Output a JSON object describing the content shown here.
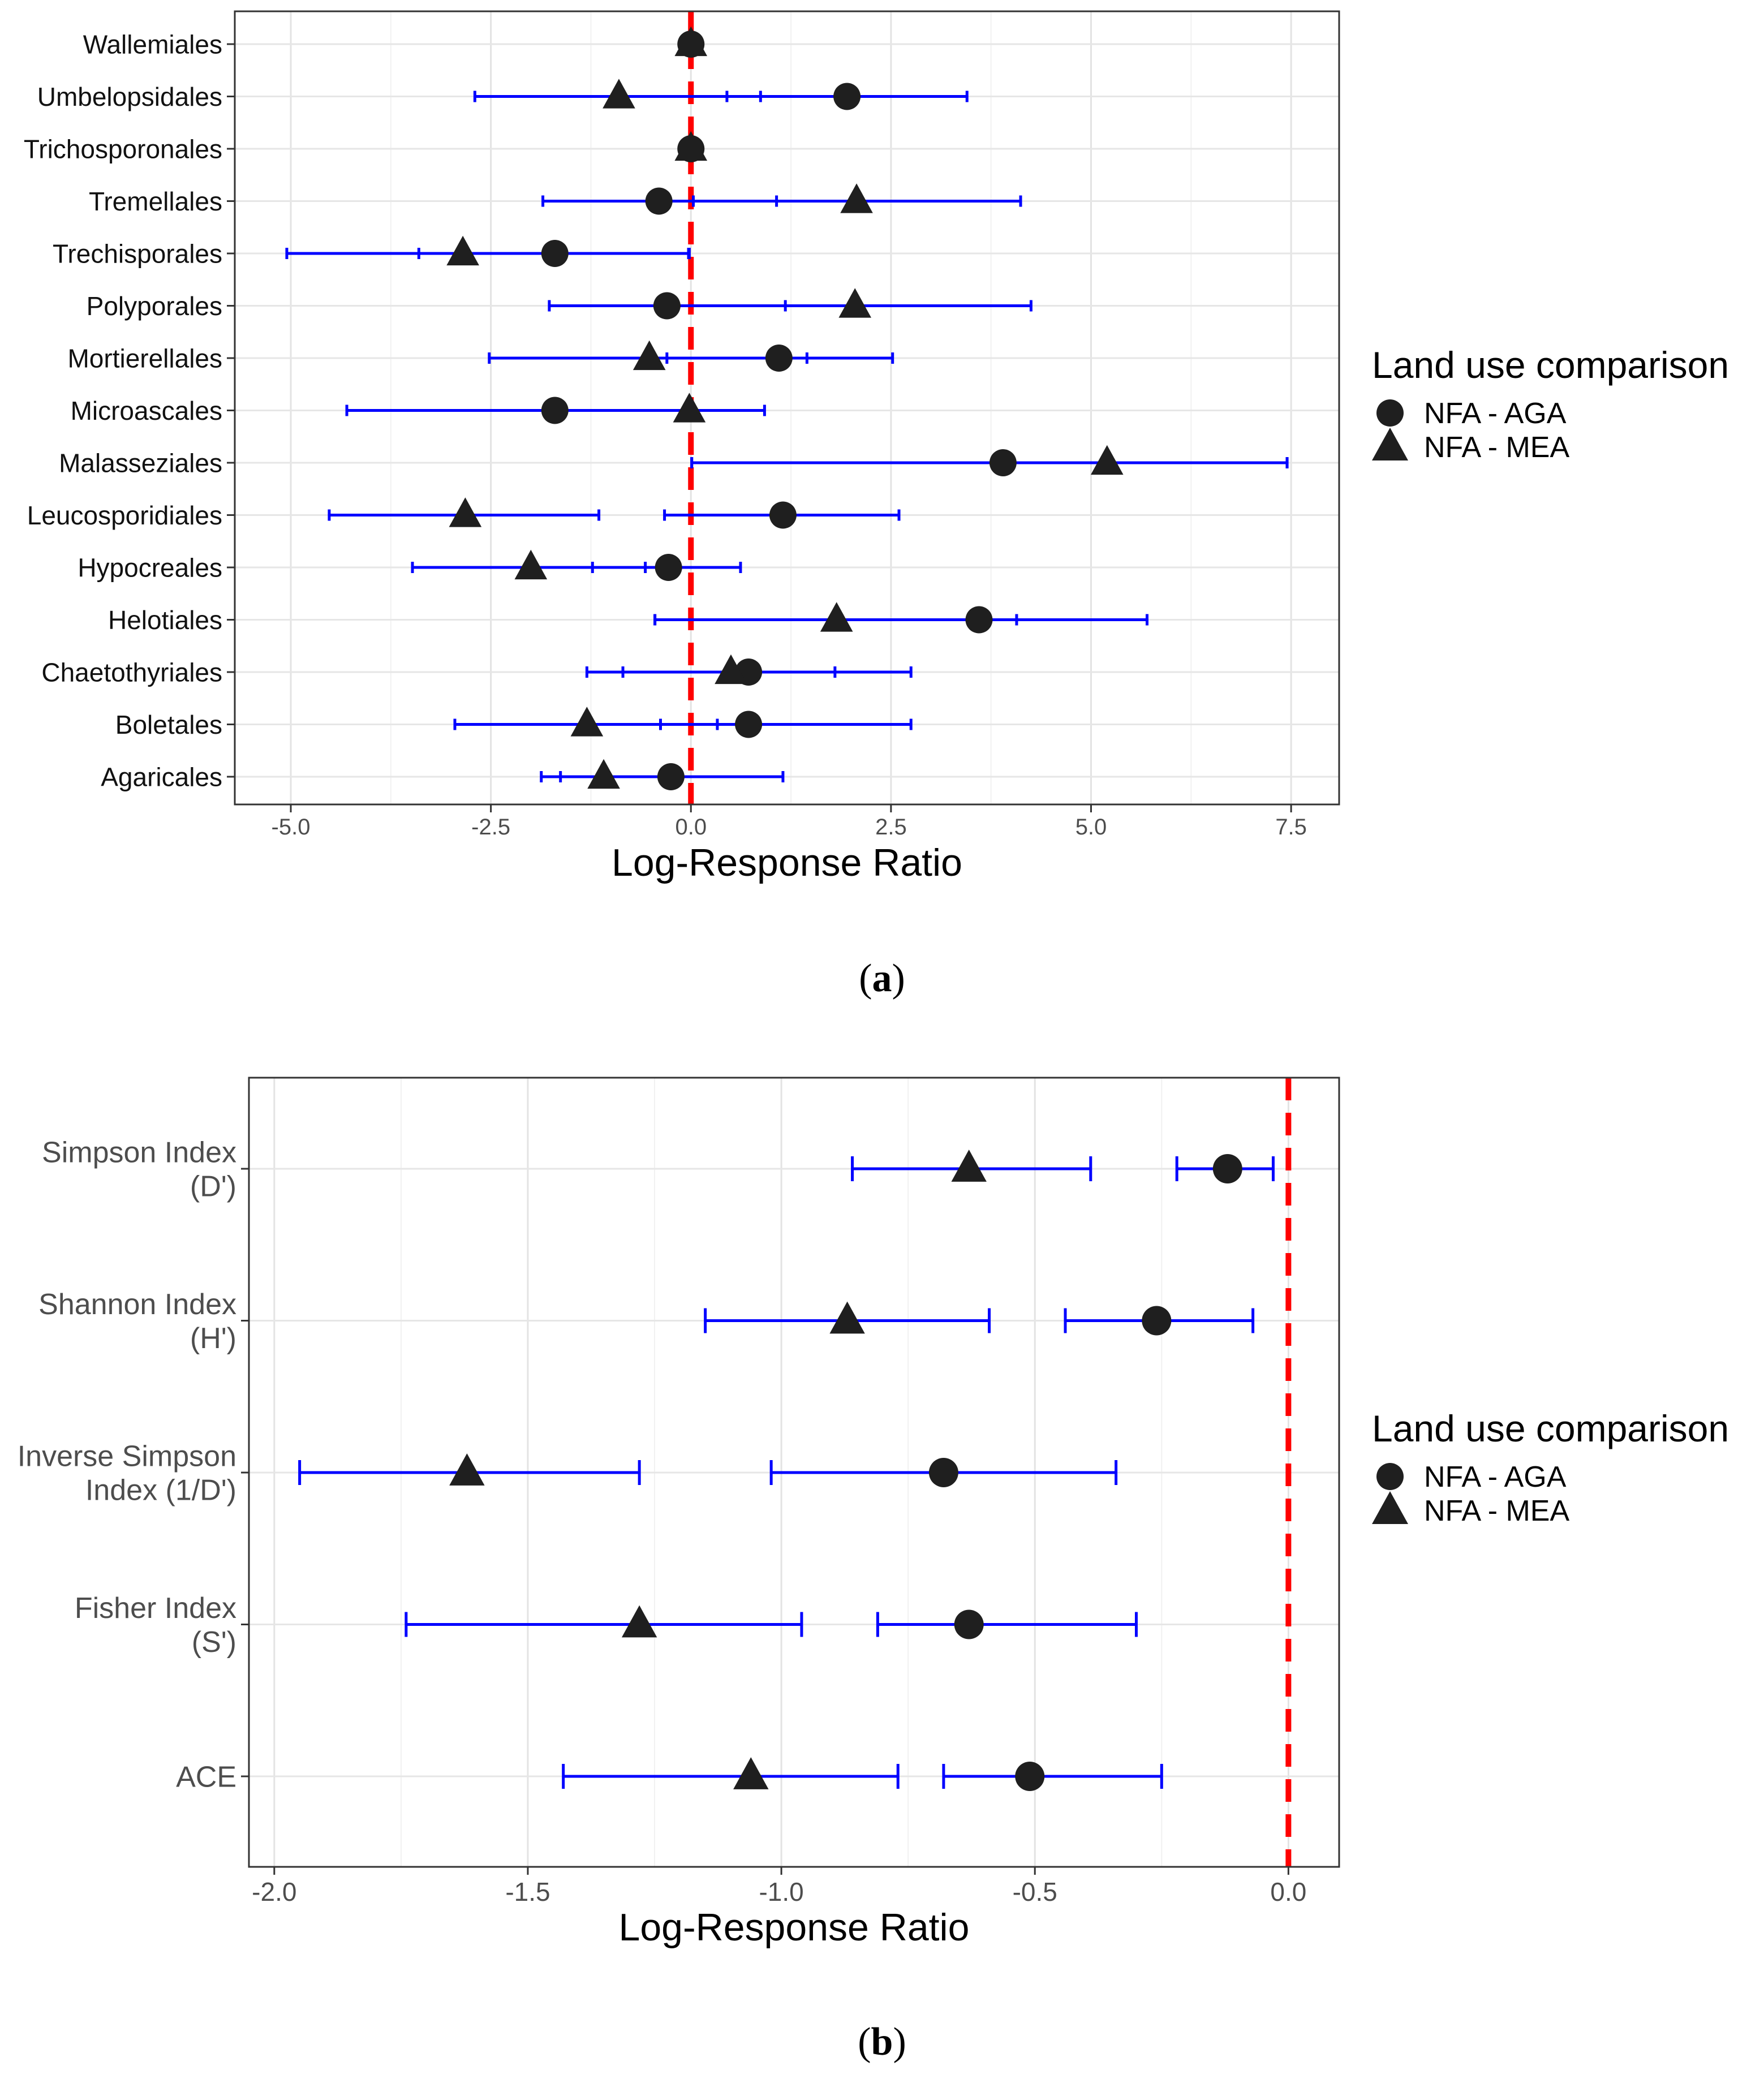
{
  "chart_data": [
    {
      "type": "forest",
      "panel_label": "a",
      "xlabel": "Log-Response Ratio",
      "ylabel": "",
      "xlim": [
        -5.7,
        8.1
      ],
      "x_ticks": [
        -5.0,
        -2.5,
        0.0,
        2.5,
        5.0,
        7.5
      ],
      "x_tick_labels": [
        "-5.0",
        "-2.5",
        "0.0",
        "2.5",
        "5.0",
        "7.5"
      ],
      "reference_line": 0,
      "legend": {
        "title": "Land use comparison",
        "position": "right",
        "entries": [
          {
            "label": "NFA - AGA",
            "shape": "circle"
          },
          {
            "label": "NFA - MEA",
            "shape": "triangle"
          }
        ]
      },
      "categories": [
        "Wallemiales",
        "Umbelopsidales",
        "Trichosporonales",
        "Tremellales",
        "Trechisporales",
        "Polyporales",
        "Mortierellales",
        "Microascales",
        "Malasseziales",
        "Leucosporidiales",
        "Hypocreales",
        "Helotiales",
        "Chaetothyriales",
        "Boletales",
        "Agaricales"
      ],
      "series": [
        {
          "name": "NFA - AGA",
          "shape": "circle",
          "values": [
            0.0,
            1.95,
            0.0,
            -0.4,
            -1.7,
            -0.3,
            1.1,
            -1.7,
            3.9,
            1.15,
            -0.28,
            3.6,
            0.72,
            0.72,
            -0.25
          ],
          "ci_low": [
            null,
            0.45,
            null,
            -1.85,
            -3.4,
            -1.77,
            -0.3,
            -4.3,
            0.01,
            -0.33,
            -1.23,
            -0.45,
            -0.85,
            -0.38,
            -1.63
          ],
          "ci_high": [
            null,
            3.45,
            null,
            1.07,
            -0.03,
            1.18,
            2.52,
            0.92,
            7.45,
            2.6,
            0.62,
            5.7,
            2.75,
            2.75,
            1.15
          ]
        },
        {
          "name": "NFA - MEA",
          "shape": "triangle",
          "values": [
            0.0,
            -0.9,
            0.0,
            2.07,
            -2.85,
            2.05,
            -0.52,
            -0.02,
            5.2,
            -2.82,
            -2.0,
            1.82,
            0.5,
            -1.3,
            -1.09
          ],
          "ci_low": [
            null,
            -2.7,
            null,
            0.03,
            -5.05,
            -0.18,
            -2.52,
            null,
            0.01,
            -4.52,
            -3.48,
            -0.45,
            -1.3,
            -2.95,
            -1.87
          ],
          "ci_high": [
            null,
            0.87,
            null,
            4.12,
            -0.02,
            4.25,
            1.45,
            null,
            7.45,
            -1.15,
            -0.57,
            4.07,
            1.8,
            0.33,
            -0.32
          ]
        }
      ]
    },
    {
      "type": "forest",
      "panel_label": "b",
      "xlabel": "Log-Response Ratio",
      "ylabel": "",
      "xlim": [
        -2.05,
        0.1
      ],
      "x_ticks": [
        -2.0,
        -1.5,
        -1.0,
        -0.5,
        0.0
      ],
      "x_tick_labels": [
        "-2.0",
        "-1.5",
        "-1.0",
        "-0.5",
        "0.0"
      ],
      "reference_line": 0,
      "legend": {
        "title": "Land use comparison",
        "position": "right",
        "entries": [
          {
            "label": "NFA - AGA",
            "shape": "circle"
          },
          {
            "label": "NFA - MEA",
            "shape": "triangle"
          }
        ]
      },
      "categories": [
        [
          "Simpson Index",
          "(D')"
        ],
        [
          "Shannon Index",
          "(H')"
        ],
        [
          "Inverse Simpson",
          "Index (1/D')"
        ],
        [
          "Fisher Index",
          "(S')"
        ],
        [
          "ACE"
        ]
      ],
      "series": [
        {
          "name": "NFA - AGA",
          "shape": "circle",
          "values": [
            -0.12,
            -0.26,
            -0.68,
            -0.63,
            -0.51
          ],
          "ci_low": [
            -0.22,
            -0.44,
            -1.02,
            -0.81,
            -0.68
          ],
          "ci_high": [
            -0.03,
            -0.07,
            -0.34,
            -0.3,
            -0.25
          ]
        },
        {
          "name": "NFA - MEA",
          "shape": "triangle",
          "values": [
            -0.63,
            -0.87,
            -1.62,
            -1.28,
            -1.06
          ],
          "ci_low": [
            -0.86,
            -1.15,
            -1.95,
            -1.74,
            -1.43
          ],
          "ci_high": [
            -0.39,
            -0.59,
            -1.28,
            -0.96,
            -0.77
          ]
        }
      ]
    }
  ],
  "captions": {
    "a": "a",
    "b": "b"
  }
}
